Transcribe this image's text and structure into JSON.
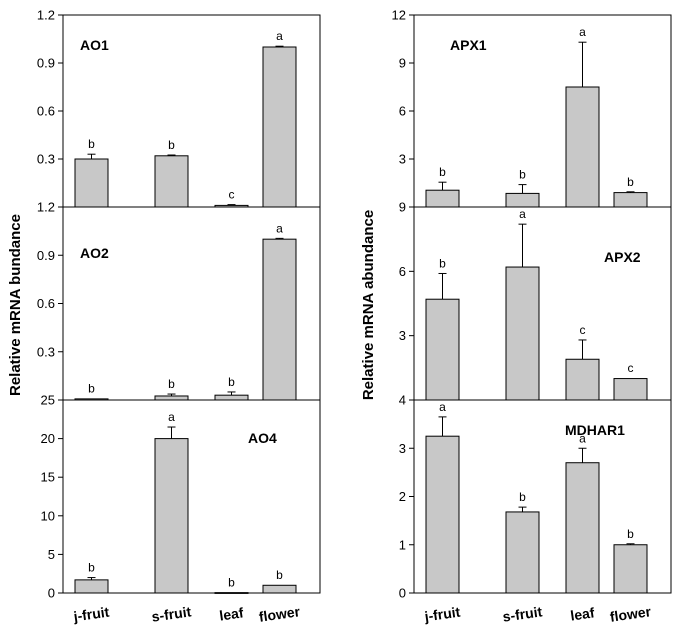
{
  "bar_color": "#c8c8c8",
  "axis_color": "#000000",
  "charts": [
    {
      "ylabel": "Relative mRNA bundance"
    },
    {
      "ylabel": "Relative mRNA abundance"
    }
  ],
  "chart_data": [
    {
      "type": "bar",
      "title": "AO1",
      "categories": [
        "j-fruit",
        "s-fruit",
        "leaf",
        "flower"
      ],
      "values": [
        0.3,
        0.32,
        0.01,
        1.0
      ],
      "errors": [
        0.03,
        0.005,
        0.005,
        0.005
      ],
      "significance": [
        "b",
        "b",
        "c",
        "a"
      ],
      "ylim": [
        0,
        1.2
      ],
      "yticks": [
        "0.3",
        "0.6",
        "0.9",
        "1.2"
      ],
      "ylabel": "Relative mRNA bundance"
    },
    {
      "type": "bar",
      "title": "AO2",
      "categories": [
        "j-fruit",
        "s-fruit",
        "leaf",
        "flower"
      ],
      "values": [
        0.007,
        0.025,
        0.03,
        1.0
      ],
      "errors": [
        0.003,
        0.012,
        0.02,
        0.005
      ],
      "significance": [
        "b",
        "b",
        "b",
        "a"
      ],
      "ylim": [
        0,
        1.2
      ],
      "yticks": [
        "0.3",
        "0.6",
        "0.9",
        "1.2"
      ],
      "ylabel": "Relative mRNA bundance"
    },
    {
      "type": "bar",
      "title": "AO4",
      "categories": [
        "j-fruit",
        "s-fruit",
        "leaf",
        "flower"
      ],
      "values": [
        1.7,
        20.0,
        0.05,
        1.0
      ],
      "errors": [
        0.3,
        1.5,
        0.02,
        0.05
      ],
      "significance": [
        "b",
        "a",
        "b",
        "b"
      ],
      "ylim": [
        0,
        25
      ],
      "yticks": [
        "0",
        "5",
        "10",
        "15",
        "20",
        "25"
      ],
      "ylabel": "Relative mRNA bundance",
      "xlabels": [
        "j-fruit",
        "s-fruit",
        "leaf",
        "flower"
      ]
    },
    {
      "type": "bar",
      "title": "APX1",
      "categories": [
        "j-fruit",
        "s-fruit",
        "leaf",
        "flower"
      ],
      "values": [
        1.05,
        0.85,
        7.5,
        0.9
      ],
      "errors": [
        0.5,
        0.55,
        2.8,
        0.05
      ],
      "significance": [
        "b",
        "b",
        "a",
        "b"
      ],
      "ylim": [
        0,
        12
      ],
      "yticks": [
        "3",
        "6",
        "9",
        "12"
      ],
      "ylabel": "Relative mRNA abundance"
    },
    {
      "type": "bar",
      "title": "APX2",
      "categories": [
        "j-fruit",
        "s-fruit",
        "leaf",
        "flower"
      ],
      "values": [
        4.7,
        6.2,
        1.9,
        1.0
      ],
      "errors": [
        1.2,
        2.0,
        0.9,
        0.02
      ],
      "significance": [
        "b",
        "a",
        "c",
        "c"
      ],
      "ylim": [
        0,
        9
      ],
      "yticks": [
        "3",
        "6",
        "9"
      ],
      "ylabel": "Relative mRNA abundance"
    },
    {
      "type": "bar",
      "title": "MDHAR1",
      "categories": [
        "j-fruit",
        "s-fruit",
        "leaf",
        "flower"
      ],
      "values": [
        3.25,
        1.68,
        2.7,
        1.0
      ],
      "errors": [
        0.4,
        0.1,
        0.3,
        0.02
      ],
      "significance": [
        "a",
        "b",
        "a",
        "b"
      ],
      "ylim": [
        0,
        4
      ],
      "yticks": [
        "0",
        "1",
        "2",
        "3",
        "4"
      ],
      "ylabel": "Relative mRNA abundance",
      "xlabels": [
        "j-fruit",
        "s-fruit",
        "leaf",
        "flower"
      ]
    }
  ]
}
